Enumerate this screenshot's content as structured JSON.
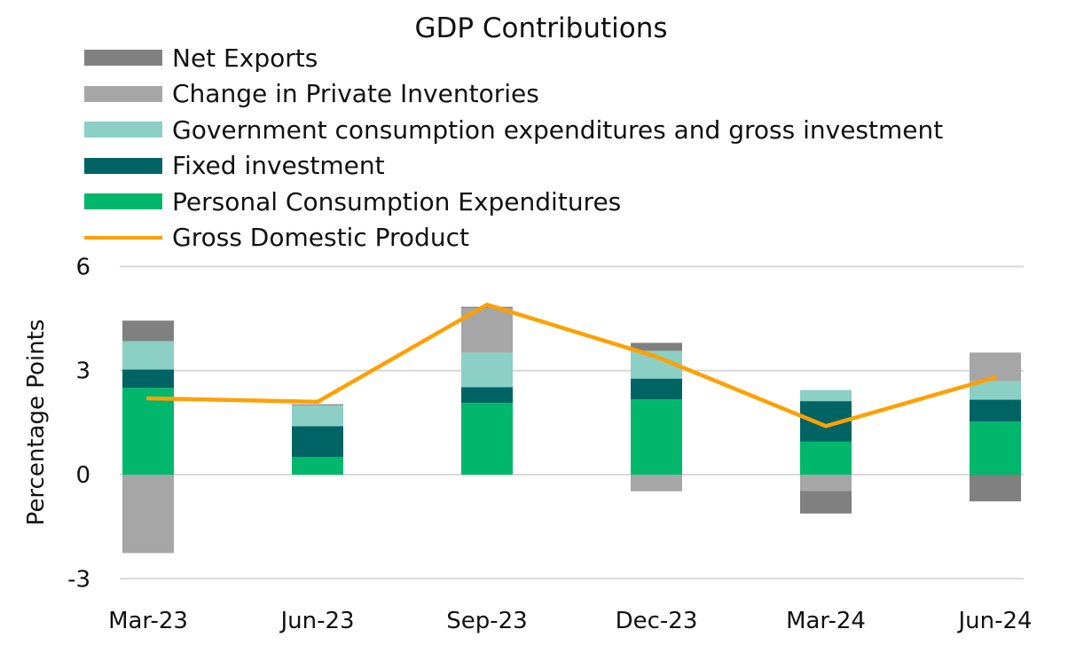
{
  "chart_data": {
    "type": "bar",
    "stacked": true,
    "title": "GDP Contributions",
    "xlabel": "",
    "ylabel": "Percentage Points",
    "ylim": [
      -3,
      6
    ],
    "yticks": [
      6,
      3,
      0,
      -3
    ],
    "grid": true,
    "legend_position": "top-left",
    "categories": [
      "Mar-23",
      "Jun-23",
      "Sep-23",
      "Dec-23",
      "Mar-24",
      "Jun-24"
    ],
    "series": [
      {
        "name": "Personal Consumption Expenditures",
        "kind": "bar",
        "color": "#00b76c",
        "values": [
          2.5,
          0.51,
          2.07,
          2.17,
          0.95,
          1.53
        ]
      },
      {
        "name": "Fixed investment",
        "kind": "bar",
        "color": "#006464",
        "values": [
          0.53,
          0.89,
          0.45,
          0.6,
          1.17,
          0.63
        ]
      },
      {
        "name": "Government consumption expenditures and gross investment",
        "kind": "bar",
        "color": "#8ccfc4",
        "values": [
          0.82,
          0.6,
          1.0,
          0.8,
          0.32,
          0.54
        ]
      },
      {
        "name": "Change in Private Inventories",
        "kind": "bar",
        "color": "#a6a6a6",
        "values": [
          -2.26,
          0.0,
          1.29,
          -0.48,
          -0.47,
          0.82
        ]
      },
      {
        "name": "Net Exports",
        "kind": "bar",
        "color": "#808080",
        "values": [
          0.59,
          0.03,
          0.03,
          0.23,
          -0.65,
          -0.77
        ]
      },
      {
        "name": "Gross Domestic Product",
        "kind": "line",
        "color": "#ffa000",
        "values": [
          2.2,
          2.1,
          4.9,
          3.4,
          1.4,
          2.8
        ]
      }
    ],
    "legend_order": [
      "Net Exports",
      "Change in Private Inventories",
      "Government consumption expenditures and gross investment",
      "Fixed investment",
      "Personal Consumption Expenditures",
      "Gross Domestic Product"
    ]
  }
}
